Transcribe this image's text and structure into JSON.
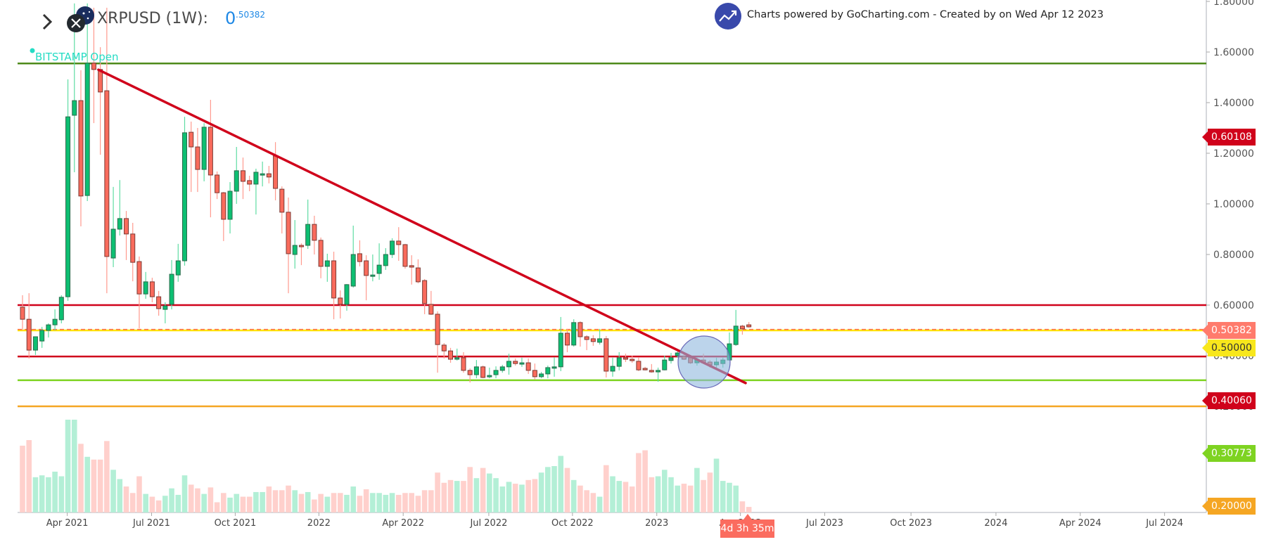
{
  "header": {
    "symbol_title": "XRPUSD (1W):",
    "price_int": "0",
    "price_frac": ".50382",
    "exchange_label": "BITSTAMP Open",
    "powered_by": "Charts powered by GoCharting.com - Created by  on Wed Apr 12 2023",
    "icons": [
      "chevron-right-icon",
      "xrp-logo-icon",
      "gocharting-logo-icon"
    ]
  },
  "badges": [
    {
      "label": "0.60108",
      "color": "#d0021b",
      "text_color": "#ffffff"
    },
    {
      "label": "0.50382",
      "color": "#ff7b6c",
      "text_color": "#ffffff"
    },
    {
      "label": "0.50000",
      "color": "#f8e71c",
      "text_color": "#333333"
    },
    {
      "label": "0.40060",
      "color": "#d0021b",
      "text_color": "#ffffff"
    },
    {
      "label": "0.30773",
      "color": "#7ed321",
      "text_color": "#ffffff"
    },
    {
      "label": "0.20000",
      "color": "#f5a623",
      "text_color": "#ffffff"
    }
  ],
  "timer": "4d 3h 35m",
  "chart_data": {
    "type": "candlestick",
    "title": "XRPUSD (1W)",
    "interval": "1W",
    "colors": {
      "up": "#0dbf72",
      "down": "#f96b5c",
      "up_vol": "#b3efd6",
      "down_vol": "#ffd0cc"
    },
    "y_ticks": [
      "1.80000",
      "1.60000",
      "1.40000",
      "1.20000",
      "1.00000",
      "0.80000",
      "0.60000",
      "0.40000",
      "0.20000"
    ],
    "y_tick_values": [
      1.8,
      1.6,
      1.4,
      1.2,
      1.0,
      0.8,
      0.6,
      0.4,
      0.2
    ],
    "x_ticks": [
      {
        "label": "Apr 2021",
        "week": 6.9
      },
      {
        "label": "Jul 2021",
        "week": 19.9
      },
      {
        "label": "Oct 2021",
        "week": 32.8
      },
      {
        "label": "2022",
        "week": 45.7
      },
      {
        "label": "Apr 2022",
        "week": 58.7
      },
      {
        "label": "Jul 2022",
        "week": 71.9
      },
      {
        "label": "Oct 2022",
        "week": 84.8
      },
      {
        "label": "2023",
        "week": 97.8
      },
      {
        "label": "Apr 2023",
        "week": 110.7
      },
      {
        "label": "Jul 2023",
        "week": 123.7
      },
      {
        "label": "Oct 2023",
        "week": 137
      },
      {
        "label": "2024",
        "week": 150.1
      },
      {
        "label": "Apr 2024",
        "week": 163.1
      },
      {
        "label": "Jul 2024",
        "week": 176.1
      }
    ],
    "horizontal_lines": [
      {
        "price": 1.555,
        "color": "#4e8a1a",
        "style": "solid"
      },
      {
        "price": 0.6,
        "color": "#d0021b",
        "style": "solid"
      },
      {
        "price": 0.5,
        "color": "#ffe600",
        "style": "solid"
      },
      {
        "price": 0.5038,
        "color": "#ff6a4d",
        "style": "dashed"
      },
      {
        "price": 0.397,
        "color": "#d0021b",
        "style": "solid"
      },
      {
        "price": 0.303,
        "color": "#7ed321",
        "style": "solid"
      },
      {
        "price": 0.2,
        "color": "#f5a623",
        "style": "solid"
      }
    ],
    "trendline": {
      "start": {
        "week": 11.7,
        "price": 1.53
      },
      "end": {
        "week": 111.5,
        "price": 0.292
      },
      "color": "#d0021b"
    },
    "highlight_circle": {
      "week": 105.1,
      "price": 0.375,
      "color": "#8fb8dd"
    },
    "candles_ohlc": [
      [
        0.592,
        0.639,
        0.5,
        0.544
      ],
      [
        0.544,
        0.647,
        0.389,
        0.422
      ],
      [
        0.422,
        0.444,
        0.403,
        0.475
      ],
      [
        0.458,
        0.514,
        0.431,
        0.5
      ],
      [
        0.5,
        0.528,
        0.472,
        0.522
      ],
      [
        0.522,
        0.583,
        0.5,
        0.544
      ],
      [
        0.542,
        0.639,
        0.528,
        0.631
      ],
      [
        0.633,
        1.492,
        0.617,
        1.344
      ],
      [
        1.35,
        1.792,
        1.125,
        1.408
      ],
      [
        1.408,
        1.528,
        0.911,
        1.031
      ],
      [
        1.033,
        1.792,
        1.011,
        1.556
      ],
      [
        1.556,
        1.775,
        1.319,
        1.531
      ],
      [
        1.531,
        1.619,
        1.194,
        1.442
      ],
      [
        1.447,
        1.775,
        0.647,
        0.792
      ],
      [
        0.786,
        1.067,
        0.75,
        0.9
      ],
      [
        0.9,
        1.094,
        0.875,
        0.942
      ],
      [
        0.942,
        0.972,
        0.778,
        0.881
      ],
      [
        0.881,
        0.925,
        0.694,
        0.769
      ],
      [
        0.772,
        0.792,
        0.508,
        0.644
      ],
      [
        0.644,
        0.731,
        0.625,
        0.692
      ],
      [
        0.692,
        0.708,
        0.611,
        0.633
      ],
      [
        0.633,
        0.656,
        0.558,
        0.586
      ],
      [
        0.583,
        0.611,
        0.528,
        0.597
      ],
      [
        0.603,
        0.778,
        0.583,
        0.722
      ],
      [
        0.719,
        0.842,
        0.692,
        0.775
      ],
      [
        0.775,
        1.344,
        0.756,
        1.281
      ],
      [
        1.283,
        1.325,
        1.047,
        1.225
      ],
      [
        1.225,
        1.3,
        1.047,
        1.136
      ],
      [
        1.136,
        1.319,
        1.089,
        1.303
      ],
      [
        1.303,
        1.411,
        0.947,
        1.114
      ],
      [
        1.114,
        1.128,
        1.019,
        1.044
      ],
      [
        1.044,
        1.047,
        0.853,
        0.939
      ],
      [
        0.939,
        1.086,
        0.883,
        1.05
      ],
      [
        1.05,
        1.225,
        1.0,
        1.131
      ],
      [
        1.131,
        1.183,
        1.019,
        1.089
      ],
      [
        1.092,
        1.111,
        1.05,
        1.078
      ],
      [
        1.078,
        1.139,
        0.958,
        1.125
      ],
      [
        1.114,
        1.167,
        1.069,
        1.119
      ],
      [
        1.119,
        1.15,
        1.081,
        1.106
      ],
      [
        1.189,
        1.244,
        1.014,
        1.061
      ],
      [
        1.058,
        1.069,
        0.883,
        0.967
      ],
      [
        0.967,
        1.025,
        0.647,
        0.803
      ],
      [
        0.8,
        0.936,
        0.744,
        0.836
      ],
      [
        0.836,
        0.844,
        0.758,
        0.831
      ],
      [
        0.836,
        1.017,
        0.822,
        0.919
      ],
      [
        0.919,
        0.953,
        0.8,
        0.856
      ],
      [
        0.856,
        0.867,
        0.706,
        0.753
      ],
      [
        0.753,
        0.803,
        0.692,
        0.775
      ],
      [
        0.775,
        0.811,
        0.544,
        0.628
      ],
      [
        0.628,
        0.658,
        0.547,
        0.603
      ],
      [
        0.603,
        0.683,
        0.578,
        0.681
      ],
      [
        0.675,
        0.914,
        0.669,
        0.8
      ],
      [
        0.803,
        0.856,
        0.753,
        0.772
      ],
      [
        0.775,
        0.797,
        0.619,
        0.717
      ],
      [
        0.714,
        0.8,
        0.694,
        0.719
      ],
      [
        0.725,
        0.844,
        0.7,
        0.758
      ],
      [
        0.756,
        0.825,
        0.739,
        0.8
      ],
      [
        0.8,
        0.864,
        0.786,
        0.853
      ],
      [
        0.853,
        0.908,
        0.775,
        0.839
      ],
      [
        0.839,
        0.842,
        0.744,
        0.753
      ],
      [
        0.756,
        0.797,
        0.681,
        0.75
      ],
      [
        0.747,
        0.781,
        0.686,
        0.692
      ],
      [
        0.697,
        0.703,
        0.564,
        0.606
      ],
      [
        0.603,
        0.656,
        0.561,
        0.564
      ],
      [
        0.564,
        0.575,
        0.333,
        0.444
      ],
      [
        0.442,
        0.45,
        0.389,
        0.419
      ],
      [
        0.419,
        0.431,
        0.372,
        0.386
      ],
      [
        0.386,
        0.428,
        0.381,
        0.392
      ],
      [
        0.392,
        0.414,
        0.333,
        0.342
      ],
      [
        0.342,
        0.35,
        0.294,
        0.325
      ],
      [
        0.325,
        0.383,
        0.311,
        0.356
      ],
      [
        0.356,
        0.361,
        0.311,
        0.314
      ],
      [
        0.317,
        0.353,
        0.311,
        0.322
      ],
      [
        0.325,
        0.358,
        0.311,
        0.342
      ],
      [
        0.342,
        0.364,
        0.333,
        0.356
      ],
      [
        0.356,
        0.408,
        0.325,
        0.378
      ],
      [
        0.378,
        0.389,
        0.361,
        0.369
      ],
      [
        0.369,
        0.392,
        0.356,
        0.372
      ],
      [
        0.372,
        0.389,
        0.328,
        0.342
      ],
      [
        0.342,
        0.369,
        0.306,
        0.317
      ],
      [
        0.317,
        0.336,
        0.311,
        0.328
      ],
      [
        0.328,
        0.361,
        0.311,
        0.353
      ],
      [
        0.353,
        0.394,
        0.317,
        0.356
      ],
      [
        0.356,
        0.553,
        0.339,
        0.489
      ],
      [
        0.489,
        0.506,
        0.414,
        0.442
      ],
      [
        0.442,
        0.544,
        0.436,
        0.531
      ],
      [
        0.531,
        0.536,
        0.436,
        0.475
      ],
      [
        0.475,
        0.481,
        0.422,
        0.464
      ],
      [
        0.467,
        0.481,
        0.439,
        0.456
      ],
      [
        0.453,
        0.506,
        0.444,
        0.467
      ],
      [
        0.467,
        0.478,
        0.314,
        0.339
      ],
      [
        0.339,
        0.392,
        0.317,
        0.358
      ],
      [
        0.358,
        0.414,
        0.342,
        0.392
      ],
      [
        0.392,
        0.408,
        0.375,
        0.386
      ],
      [
        0.386,
        0.4,
        0.372,
        0.381
      ],
      [
        0.378,
        0.392,
        0.339,
        0.344
      ],
      [
        0.35,
        0.356,
        0.342,
        0.344
      ],
      [
        0.342,
        0.367,
        0.333,
        0.336
      ],
      [
        0.336,
        0.353,
        0.297,
        0.342
      ],
      [
        0.344,
        0.4,
        0.342,
        0.383
      ],
      [
        0.381,
        0.411,
        0.369,
        0.392
      ],
      [
        0.4,
        0.417,
        0.392,
        0.411
      ],
      [
        0.397,
        0.408,
        0.383,
        0.386
      ],
      [
        0.392,
        0.403,
        0.367,
        0.372
      ],
      [
        0.372,
        0.394,
        0.361,
        0.383
      ],
      [
        0.383,
        0.408,
        0.367,
        0.372
      ],
      [
        0.375,
        0.383,
        0.353,
        0.364
      ],
      [
        0.364,
        0.392,
        0.353,
        0.375
      ],
      [
        0.369,
        0.392,
        0.353,
        0.383
      ],
      [
        0.383,
        0.492,
        0.381,
        0.447
      ],
      [
        0.444,
        0.581,
        0.439,
        0.517
      ],
      [
        0.517,
        0.522,
        0.483,
        0.506
      ],
      [
        0.522,
        0.533,
        0.511,
        0.514
      ]
    ],
    "volume_relative": [
      0.72,
      0.78,
      0.38,
      0.4,
      0.38,
      0.44,
      0.39,
      1.0,
      1.0,
      0.74,
      0.6,
      0.57,
      0.57,
      0.77,
      0.46,
      0.36,
      0.28,
      0.21,
      0.39,
      0.2,
      0.17,
      0.13,
      0.18,
      0.26,
      0.19,
      0.4,
      0.3,
      0.26,
      0.2,
      0.27,
      0.11,
      0.21,
      0.16,
      0.2,
      0.17,
      0.17,
      0.22,
      0.22,
      0.28,
      0.24,
      0.24,
      0.29,
      0.24,
      0.2,
      0.22,
      0.14,
      0.2,
      0.17,
      0.21,
      0.21,
      0.19,
      0.28,
      0.18,
      0.25,
      0.21,
      0.21,
      0.19,
      0.21,
      0.19,
      0.21,
      0.21,
      0.18,
      0.24,
      0.24,
      0.43,
      0.32,
      0.35,
      0.34,
      0.34,
      0.49,
      0.37,
      0.48,
      0.42,
      0.37,
      0.28,
      0.33,
      0.31,
      0.3,
      0.35,
      0.36,
      0.43,
      0.49,
      0.5,
      0.61,
      0.48,
      0.35,
      0.29,
      0.24,
      0.21,
      0.17,
      0.51,
      0.39,
      0.34,
      0.33,
      0.28,
      0.64,
      0.67,
      0.38,
      0.39,
      0.46,
      0.38,
      0.29,
      0.31,
      0.29,
      0.48,
      0.35,
      0.43,
      0.58,
      0.34,
      0.32,
      0.29,
      0.12,
      0.06
    ]
  }
}
